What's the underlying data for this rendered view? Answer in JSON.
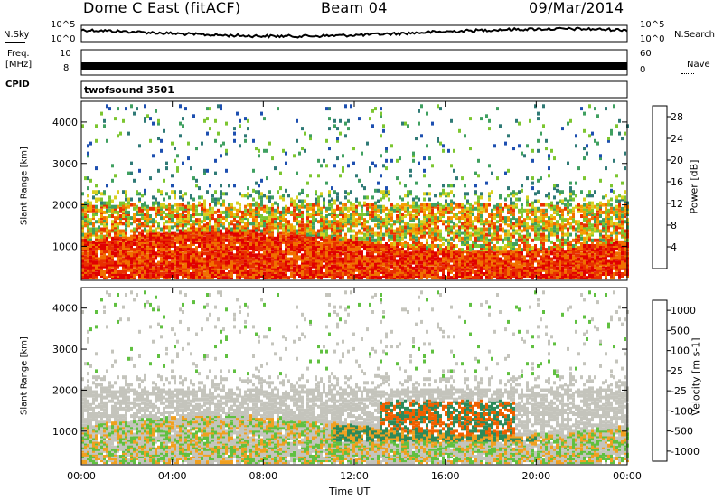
{
  "header": {
    "station": "Dome C East (fitACF)",
    "beam": "Beam 04",
    "date": "09/Mar/2014"
  },
  "top_panels": {
    "nsky_label": "N.Sky",
    "nsearch_label": "N.Search",
    "nsky_ticks": [
      "10^5",
      "10^0"
    ],
    "nsearch_ticks": [
      "10^5",
      "10^0"
    ],
    "freq_label": "Freq.",
    "freq_unit": "[MHz]",
    "freq_ticks": [
      "10",
      "8"
    ],
    "nave_label": "Nave",
    "nave_ticks": [
      "60",
      "0"
    ],
    "cpid_label": "CPID",
    "cpid_value": "twofsound 3501"
  },
  "chart_data": [
    {
      "type": "heatmap",
      "name": "power",
      "ylabel": "Slant Range [km]",
      "xlabel": "",
      "x_ticks": [
        "00:00",
        "04:00",
        "08:00",
        "12:00",
        "16:00",
        "20:00",
        "00:00"
      ],
      "y_ticks": [
        1000,
        2000,
        3000,
        4000
      ],
      "ylim": [
        180,
        4500
      ],
      "xlim_hours": [
        0,
        24
      ],
      "colorbar": {
        "label": "Power [dB]",
        "ticks": [
          4,
          8,
          12,
          16,
          20,
          24,
          28
        ],
        "range": [
          0,
          30
        ],
        "colors": [
          "#1010e0",
          "#1d4fb0",
          "#2f7a76",
          "#3fa060",
          "#7cc630",
          "#d8d020",
          "#f5a000",
          "#f07000",
          "#e83000",
          "#e00000"
        ]
      },
      "dominant_values_db": {
        "low_range_below_1200km": 28,
        "mid_1200_2200km": 18,
        "high_above_2500km": 10
      }
    },
    {
      "type": "heatmap",
      "name": "velocity",
      "ylabel": "Slant Range [km]",
      "xlabel": "Time UT",
      "x_ticks": [
        "00:00",
        "04:00",
        "08:00",
        "12:00",
        "16:00",
        "20:00",
        "00:00"
      ],
      "y_ticks": [
        1000,
        2000,
        3000,
        4000
      ],
      "ylim": [
        180,
        4500
      ],
      "xlim_hours": [
        0,
        24
      ],
      "colorbar": {
        "label": "Velocity [m s-1]",
        "ticks": [
          1000,
          500,
          100,
          25,
          -25,
          -100,
          -500,
          -1000
        ],
        "colors": [
          "#1530c0",
          "#2a60b0",
          "#2d8a5a",
          "#60c040",
          "#c8c8c0",
          "#f0a020",
          "#f06000",
          "#e00000"
        ]
      },
      "dominant_values_ms": {
        "ground_scatter_band_1200_2000km": 0,
        "low_range_below_1200km": -100
      }
    }
  ],
  "colors": {
    "ground_scatter": "#c4c4bc",
    "background": "#ffffff",
    "axis": "#000000"
  }
}
